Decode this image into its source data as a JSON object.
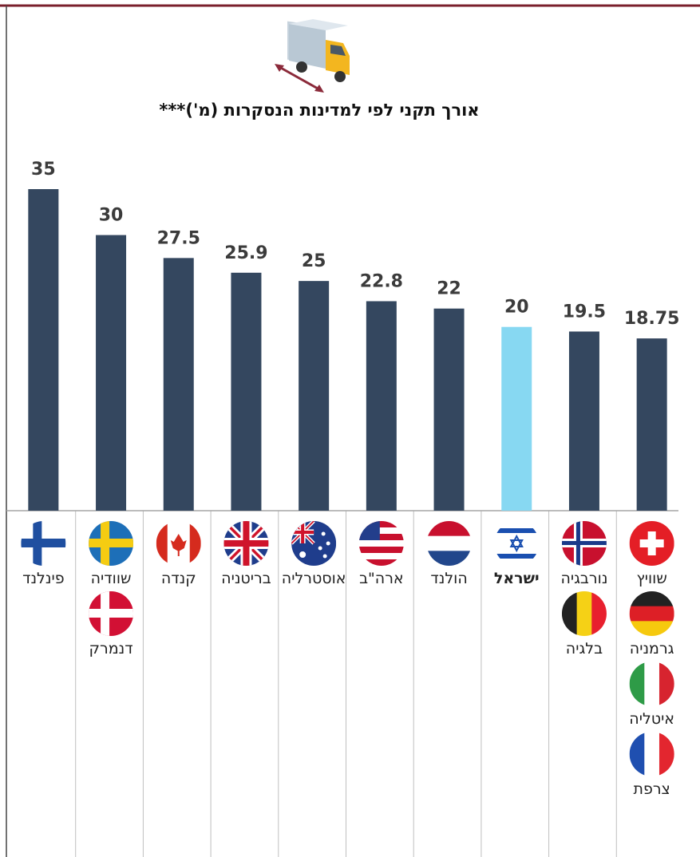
{
  "chart_data": {
    "type": "bar",
    "title": "אורך תקני לפי למדינות הנסקרות (מ')***",
    "categories": [
      [
        "פינלנד"
      ],
      [
        "שוודיה",
        "דנמרק"
      ],
      [
        "קנדה"
      ],
      [
        "בריטניה"
      ],
      [
        "אוסטרליה"
      ],
      [
        "ארה\"ב"
      ],
      [
        "הולנד"
      ],
      [
        "ישראל"
      ],
      [
        "נורבגיה",
        "בלגיה"
      ],
      [
        "שוויץ",
        "גרמניה",
        "איטליה",
        "צרפת"
      ]
    ],
    "values": [
      35,
      30,
      27.5,
      25.9,
      25,
      22.8,
      22,
      20,
      19.5,
      18.75
    ],
    "color": "#34475f",
    "colors": [
      "#34475f",
      "#34475f",
      "#34475f",
      "#34475f",
      "#34475f",
      "#34475f",
      "#34475f",
      "#87d8f2",
      "#34475f",
      "#34475f"
    ],
    "ylim": [
      0,
      35
    ]
  }
}
